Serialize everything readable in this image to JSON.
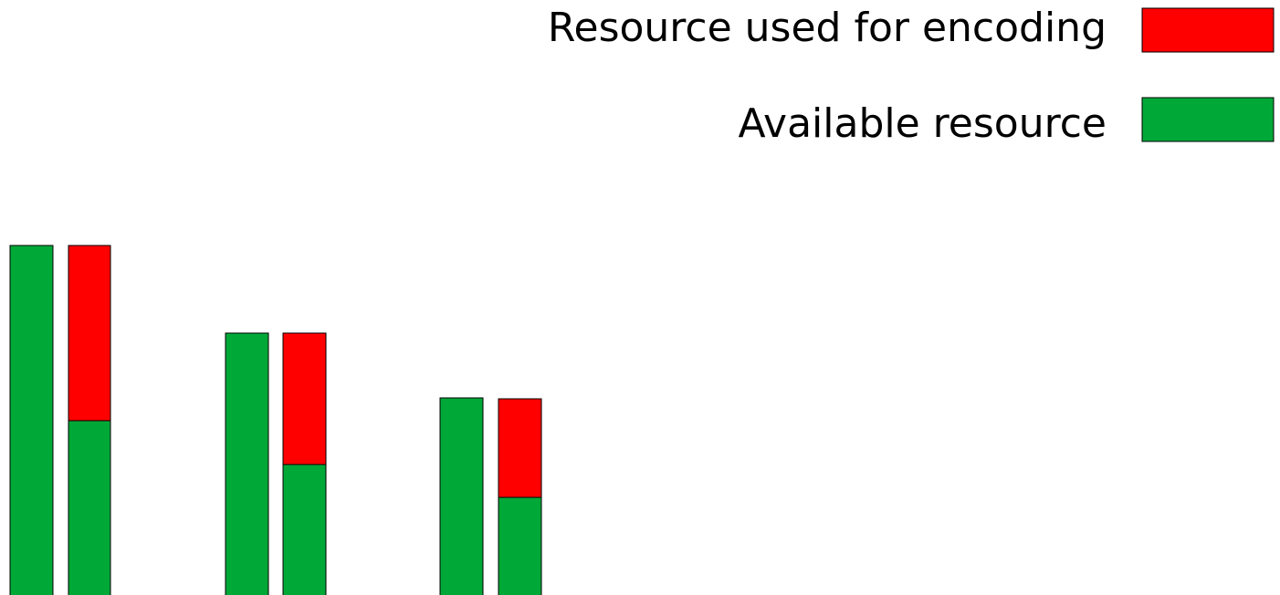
{
  "legend": {
    "items": [
      {
        "label": "Resource used for encoding",
        "color": "#ff0000"
      },
      {
        "label": "Available resource",
        "color": "#00a838"
      }
    ]
  }
}
